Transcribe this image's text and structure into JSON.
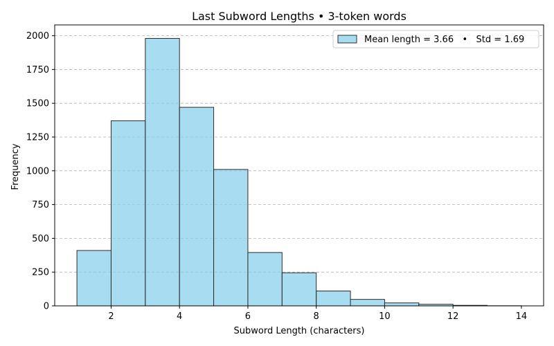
{
  "chart_data": {
    "type": "bar",
    "title": "Last Subword Lengths • 3-token words",
    "xlabel": "Subword Length (characters)",
    "ylabel": "Frequency",
    "bins": [
      {
        "x0": 1,
        "x1": 2,
        "value": 410
      },
      {
        "x0": 2,
        "x1": 3,
        "value": 1370
      },
      {
        "x0": 3,
        "x1": 4,
        "value": 1980
      },
      {
        "x0": 4,
        "x1": 5,
        "value": 1470
      },
      {
        "x0": 5,
        "x1": 6,
        "value": 1010
      },
      {
        "x0": 6,
        "x1": 7,
        "value": 395
      },
      {
        "x0": 7,
        "x1": 8,
        "value": 245
      },
      {
        "x0": 8,
        "x1": 9,
        "value": 110
      },
      {
        "x0": 9,
        "x1": 10,
        "value": 48
      },
      {
        "x0": 10,
        "x1": 11,
        "value": 22
      },
      {
        "x0": 11,
        "x1": 12,
        "value": 12
      },
      {
        "x0": 12,
        "x1": 13,
        "value": 4
      },
      {
        "x0": 13,
        "x1": 14,
        "value": 1
      }
    ],
    "xlim": [
      0.35,
      14.65
    ],
    "ylim": [
      0,
      2080
    ],
    "x_ticks": [
      2,
      4,
      6,
      8,
      10,
      12,
      14
    ],
    "y_ticks": [
      0,
      250,
      500,
      750,
      1000,
      1250,
      1500,
      1750,
      2000
    ],
    "grid": {
      "y": true,
      "x": false
    },
    "bar_color": "#87ceeb",
    "bar_edge_color": "#2b2b2b",
    "legend": {
      "placement": "top-right",
      "entries": [
        "Mean length = 3.66   •   Std = 1.69"
      ]
    }
  }
}
